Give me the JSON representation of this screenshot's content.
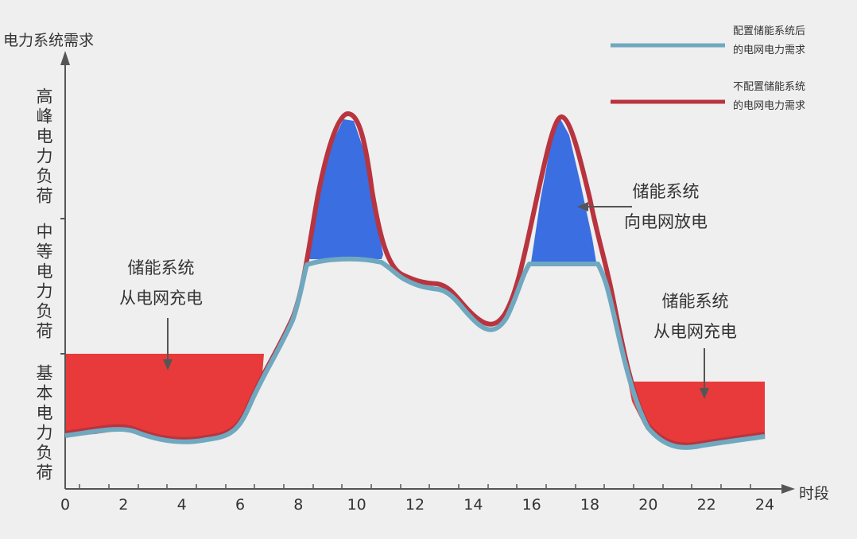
{
  "y_axis": {
    "title": "电力系统需求",
    "zones": [
      "高峰电力负荷",
      "中等电力负荷",
      "基本电力负荷"
    ]
  },
  "x_axis": {
    "title": "时段",
    "ticks": [
      "0",
      "2",
      "4",
      "6",
      "8",
      "10",
      "12",
      "14",
      "16",
      "18",
      "20",
      "22",
      "24"
    ]
  },
  "legend": [
    {
      "lines": [
        "配置储能系统后",
        "的电网电力需求"
      ]
    },
    {
      "lines": [
        "不配置储能系统",
        "的电网电力需求"
      ]
    }
  ],
  "annotations": [
    {
      "lines": [
        "储能系统",
        "从电网充电"
      ]
    },
    {
      "lines": [
        "储能系统",
        "向电网放电"
      ]
    },
    {
      "lines": [
        "储能系统",
        "从电网充电"
      ]
    }
  ]
}
